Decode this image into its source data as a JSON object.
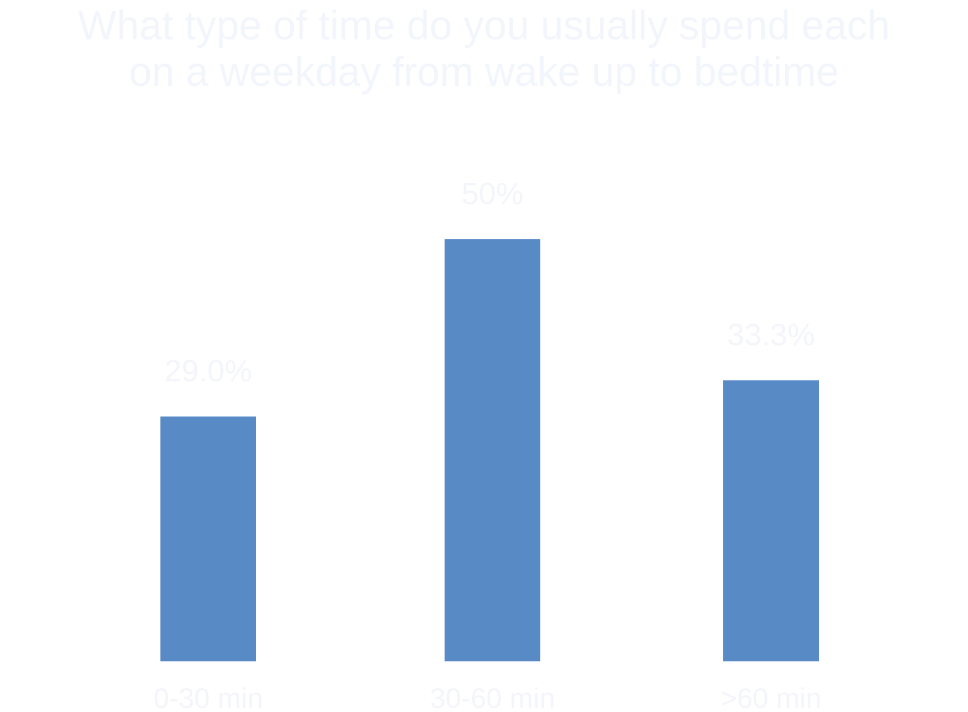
{
  "chart_data": {
    "type": "bar",
    "title": [
      "What type of time do you usually spend each",
      "on a weekday from wake up to bedtime"
    ],
    "categories": [
      "0-30 min",
      "30-60 min",
      ">60 min"
    ],
    "values": [
      29,
      50,
      33.3
    ],
    "value_labels": [
      "29.0%",
      "50%",
      "33.3%"
    ],
    "ylim": [
      0,
      60
    ],
    "grid": false,
    "legend": "none",
    "bar_color": "#588bc6",
    "label_color": "#f3f5fa"
  }
}
